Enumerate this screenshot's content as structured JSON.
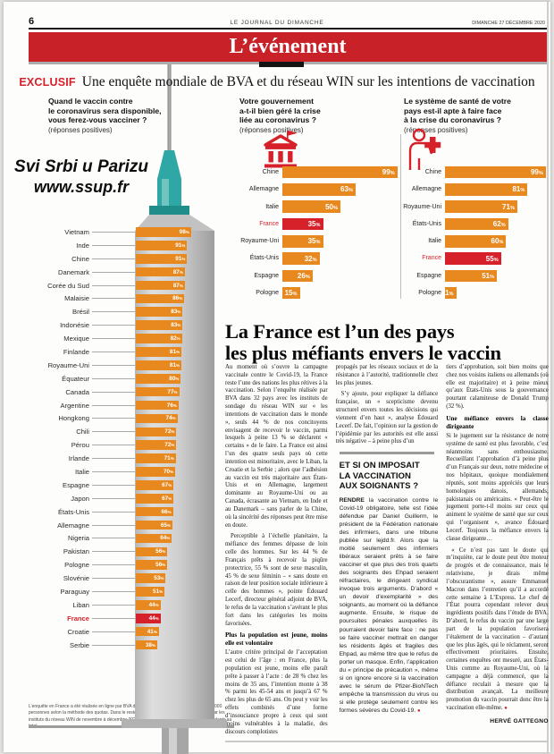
{
  "header": {
    "page_number": "6",
    "masthead": "LE JOURNAL DU DIMANCHE",
    "date": "DIMANCHE 27 DÉCEMBRE 2020",
    "banner": "L’événement"
  },
  "kicker": {
    "tag": "EXCLUSIF",
    "text": "Une enquête mondiale de BVA et du réseau WIN sur les intentions de vaccination"
  },
  "watermark": {
    "line1": "Svi Srbi u Parizu",
    "line2": "www.ssup.fr"
  },
  "colors": {
    "banner_red": "#c92128",
    "bar_orange": "#e8891f",
    "highlight_red": "#d7212a",
    "syringe_teal": "#2fa7a4",
    "syringe_gray": "#c6c6c6"
  },
  "chart_data": [
    {
      "type": "bar",
      "title": "Quand le vaccin contre\nle coronavirus sera disponible,\nvous ferez-vous vacciner ?",
      "subtitle": "(réponses positives)",
      "illustration": "syringe-illustration",
      "unit": "%",
      "xlim": [
        0,
        100
      ],
      "highlight": "France",
      "categories": [
        "Vietnam",
        "Inde",
        "Chine",
        "Danemark",
        "Corée du Sud",
        "Malaisie",
        "Brésil",
        "Indonésie",
        "Mexique",
        "Finlande",
        "Royaume-Uni",
        "Équateur",
        "Canada",
        "Argentine",
        "Hongkong",
        "Chili",
        "Pérou",
        "Irlande",
        "Italie",
        "Espagne",
        "Japon",
        "États-Unis",
        "Allemagne",
        "Nigeria",
        "Pakistan",
        "Pologne",
        "Slovénie",
        "Paraguay",
        "Liban",
        "France",
        "Croatie",
        "Serbie"
      ],
      "values": [
        98,
        91,
        91,
        87,
        87,
        86,
        83,
        83,
        82,
        81,
        81,
        80,
        77,
        76,
        74,
        72,
        72,
        71,
        70,
        67,
        67,
        66,
        65,
        64,
        56,
        56,
        53,
        51,
        44,
        44,
        41,
        38
      ]
    },
    {
      "type": "bar",
      "title": "Votre gouvernement\na-t-il bien géré la crise\nliée au coronavirus ?",
      "subtitle": "(réponses positives)",
      "illustration": "government-bank-icon",
      "unit": "%",
      "xlim": [
        0,
        100
      ],
      "highlight": "France",
      "categories": [
        "Chine",
        "Allemagne",
        "Italie",
        "France",
        "Royaume-Uni",
        "États-Unis",
        "Espagne",
        "Pologne"
      ],
      "values": [
        99,
        63,
        50,
        35,
        35,
        32,
        26,
        15
      ]
    },
    {
      "type": "bar",
      "title": "Le système de santé de votre\npays est-il apte à faire face\nà la crise du coronavirus ?",
      "subtitle": "(réponses positives)",
      "illustration": "health-medic-icon",
      "unit": "%",
      "xlim": [
        0,
        100
      ],
      "highlight": "France",
      "categories": [
        "Chine",
        "Allemagne",
        "Royaume-Uni",
        "États-Unis",
        "Italie",
        "France",
        "Espagne",
        "Pologne"
      ],
      "values": [
        99,
        81,
        71,
        62,
        60,
        55,
        51,
        11
      ]
    }
  ],
  "article": {
    "headline": "La France est l’un des pays\nles plus méfiants envers le vaccin",
    "end_mark": "●",
    "col1": {
      "p1": "Au moment où s’ouvre la campagne vaccinale contre le Covid-19, la France reste l’une des nations les plus rétives à la vaccination. Selon l’enquête réalisée par BVA dans 32 pays avec les instituts de sondage du réseau WIN sur « les intentions de vaccination dans le monde », seuls 44 % de nos concitoyens envisagent de recevoir le vaccin, parmi lesquels à peine 13 % se déclarent « certains » de le faire. La France est ainsi l’un des quatre seuls pays où cette intention est minoritaire, avec le Liban, la Croatie et la Serbie ; alors que l’adhésion au vaccin est très majoritaire aux États-Unis et en Allemagne, largement dominante au Royaume-Uni ou au Canada, écrasante au Vietnam, en Inde et au Danemark – sans parler de la Chine, où la sincérité des réponses peut être mise en doute.",
      "p2": "Perceptible à l’échelle planétaire, la méfiance des femmes dépasse de loin celle des hommes. Sur les 44 % de Français prêts à recevoir la piqûre protectrice, 55 % sont de sexe masculin, 45 % de sexe féminin – « sans doute en raison de leur position sociale inférieure à celle des hommes », pointe Édouard Lecerf, directeur général adjoint de BVA, le refus de la vaccination s’avérant le plus fort dans les catégories les moins favorisées.",
      "subhead": "Plus la population est jeune, moins elle est volontaire",
      "p3": "L’autre critère principal de l’acceptation est celui de l’âge : en France, plus la population est jeune, moins elle paraît prête à passer à l’acte : de 28 % chez les moins de 35 ans, l’intention monte à 38 % parmi les 45-54 ans et jusqu’à 67 % chez les plus de 65 ans. On peut y voir les effets combinés d’une forme d’insouciance propre à ceux qui sont moins vulnérables à la maladie, des discours complotistes"
    },
    "col2": {
      "p1": "propagés par les réseaux sociaux et de la résistance à l’autorité, traditionnelle chez les plus jeunes.",
      "p2": "S’y ajoute, pour expliquer la défiance française, un « scepticisme devenu structurel envers toutes les décisions qui viennent d’en haut », analyse Édouard Lecerf. De fait, l’opinion sur la gestion de l’épidémie par les autorités est elle aussi très négative – à peine plus d’un"
    },
    "box": {
      "title": "ET SI ON IMPOSAIT\nLA VACCINATION\nAUX SOIGNANTS ?",
      "lead_word": "RENDRE",
      "text": "la vaccination contre le Covid-19 obligatoire, telle est l’idée défendue par Daniel Guillerm, le président de la Fédération nationale des infirmiers, dans une tribune publiée sur lejdd.fr. Alors que la moitié seulement des infirmiers libéraux seraient prêts à se faire vacciner et que plus des trois quarts des soignants des Ehpad seraient réfractaires, le dirigeant syndical invoque trois arguments. D’abord « un devoir d’exemplarité » des soignants, au moment où la défiance augmente. Ensuite, le risque de poursuites pénales auxquelles ils pourraient devoir faire face : ne pas se faire vacciner mettrait en danger les résidents âgés et fragiles des Ehpad, au même titre que le refus de porter un masque. Enfin, l’application du « principe de précaution », même si on ignore encore si la vaccination avec le sérum de Pfizer-BioNTech empêche la transmission du virus ou si elle protège seulement contre les formes sévères du Covid-19."
    },
    "col3": {
      "p1": "tiers d’approbation, soit bien moins que chez nos voisins italiens ou allemands (où elle est majoritaire) et à peine mieux qu’aux États-Unis sous la gouvernance pourtant calamiteuse de Donald Trump (32 %).",
      "subhead": "Une méfiance envers la classe dirigeante",
      "p2": "Si le jugement sur la résistance de notre système de santé est plus favorable, c’est néanmoins sans enthousiasme. Recueillant l’approbation d’à peine plus d’un Français sur deux, notre médecine et nos hôpitaux, quoique mondialement réputés, sont moins appréciés que leurs homologues danois, allemands, pakistanais ou américains. « Peut-être le jugement porte-t-il moins sur ceux qui animent le système de santé que sur ceux qui l’organisent », avance Édouard Lecerf. Toujours la méfiance envers la classe dirigeante…",
      "p3": "« Ce n’est pas tant le doute qui m’inquiète, car le doute peut être moteur de progrès et de connaissance, mais le relativisme, je dirais même l’obscurantisme », assure Emmanuel Macron dans l’entretien qu’il a accordé cette semaine à L’Express. Le chef de l’État pourra cependant relever deux ingrédients positifs dans l’étude de BVA. D’abord, le refus du vaccin par une large part de la population favorisera l’étalement de la vaccination – d’autant que les plus âgés, qui le réclament, seront effectivement prioritaires. Ensuite, certaines enquêtes ont mesuré, aux États-Unis comme au Royaume-Uni, où la campagne a déjà commencé, que la défiance reculait à mesure que la distribution avançait. La meilleure promotion du vaccin pourrait donc être la vaccination elle-même."
    },
    "byline": "HERVÉ GATTEGNO"
  },
  "footnote": {
    "text": "L’enquête en France a été réalisée en ligne par BVA du 11 au 14 décembre 2020 auprès de 1 000 personnes selon la méthode des quotas. Dans le reste du monde, enquête réalisée en ligne par les instituts du réseau WIN de novembre à décembre 2020 dans 31 pays auprès de 29 758 répondants au total."
  }
}
